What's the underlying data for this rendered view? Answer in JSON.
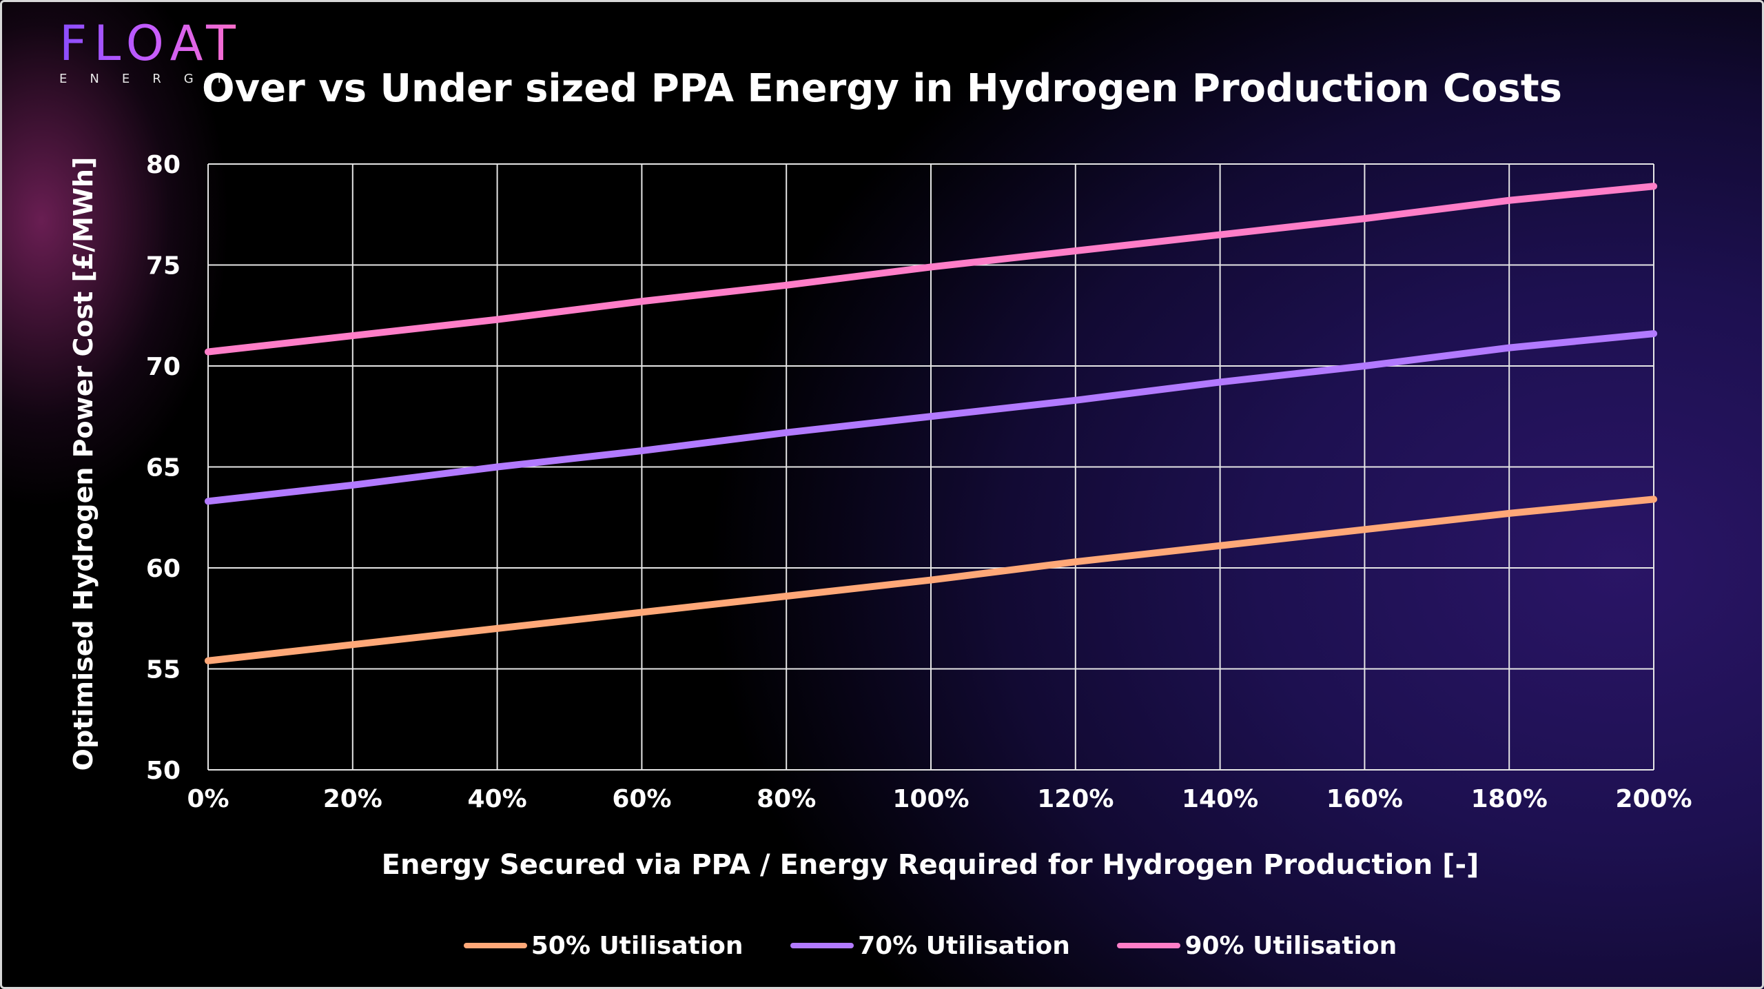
{
  "brand": {
    "name": "FLOAT",
    "sub": "ENERGY"
  },
  "chart_data": {
    "type": "line",
    "title": "Over vs Under sized PPA Energy in Hydrogen Production Costs",
    "xlabel": "Energy Secured via PPA / Energy Required for Hydrogen Production [-]",
    "ylabel": "Optimised Hydrogen Power Cost [£/MWh]",
    "x": [
      0,
      20,
      40,
      60,
      80,
      100,
      120,
      140,
      160,
      180,
      200
    ],
    "x_tick_labels": [
      "0%",
      "20%",
      "40%",
      "60%",
      "80%",
      "100%",
      "120%",
      "140%",
      "160%",
      "180%",
      "200%"
    ],
    "y_ticks": [
      50,
      55,
      60,
      65,
      70,
      75,
      80
    ],
    "ylim": [
      50,
      80
    ],
    "xlim": [
      0,
      200
    ],
    "grid": true,
    "legend_position": "bottom",
    "series": [
      {
        "name": "50% Utilisation",
        "color": "#ffa878",
        "values": [
          55.4,
          56.2,
          57.0,
          57.8,
          58.6,
          59.4,
          60.3,
          61.1,
          61.9,
          62.7,
          63.4
        ]
      },
      {
        "name": "70% Utilisation",
        "color": "#b27aff",
        "values": [
          63.3,
          64.1,
          65.0,
          65.8,
          66.7,
          67.5,
          68.3,
          69.2,
          70.0,
          70.9,
          71.6
        ]
      },
      {
        "name": "90% Utilisation",
        "color": "#ff7ec8",
        "values": [
          70.7,
          71.5,
          72.3,
          73.2,
          74.0,
          74.9,
          75.7,
          76.5,
          77.3,
          78.2,
          78.9
        ]
      }
    ]
  }
}
